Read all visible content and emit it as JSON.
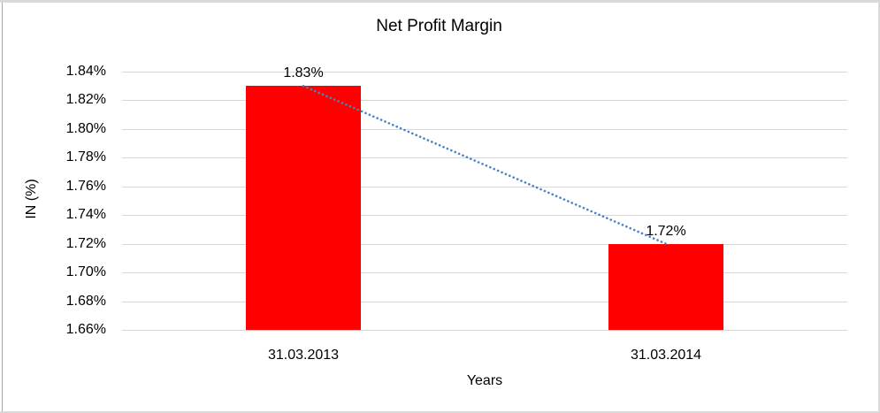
{
  "chart_data": {
    "type": "bar",
    "title": "Net Profit Margin",
    "xlabel": "Years",
    "ylabel": "IN (%)",
    "categories": [
      "31.03.2013",
      "31.03.2014"
    ],
    "values": [
      1.83,
      1.72
    ],
    "data_labels": [
      "1.83%",
      "1.72%"
    ],
    "ylim": [
      1.66,
      1.84
    ],
    "ytick_labels": [
      "1.84%",
      "1.82%",
      "1.80%",
      "1.78%",
      "1.76%",
      "1.74%",
      "1.72%",
      "1.70%",
      "1.68%",
      "1.66%"
    ],
    "grid": true,
    "legend_position": "none",
    "bar_color": "#ff0000",
    "gridline_color": "#d6d6d6",
    "trendline": {
      "type": "linear",
      "style": "dotted",
      "color": "#4a82c4"
    }
  }
}
